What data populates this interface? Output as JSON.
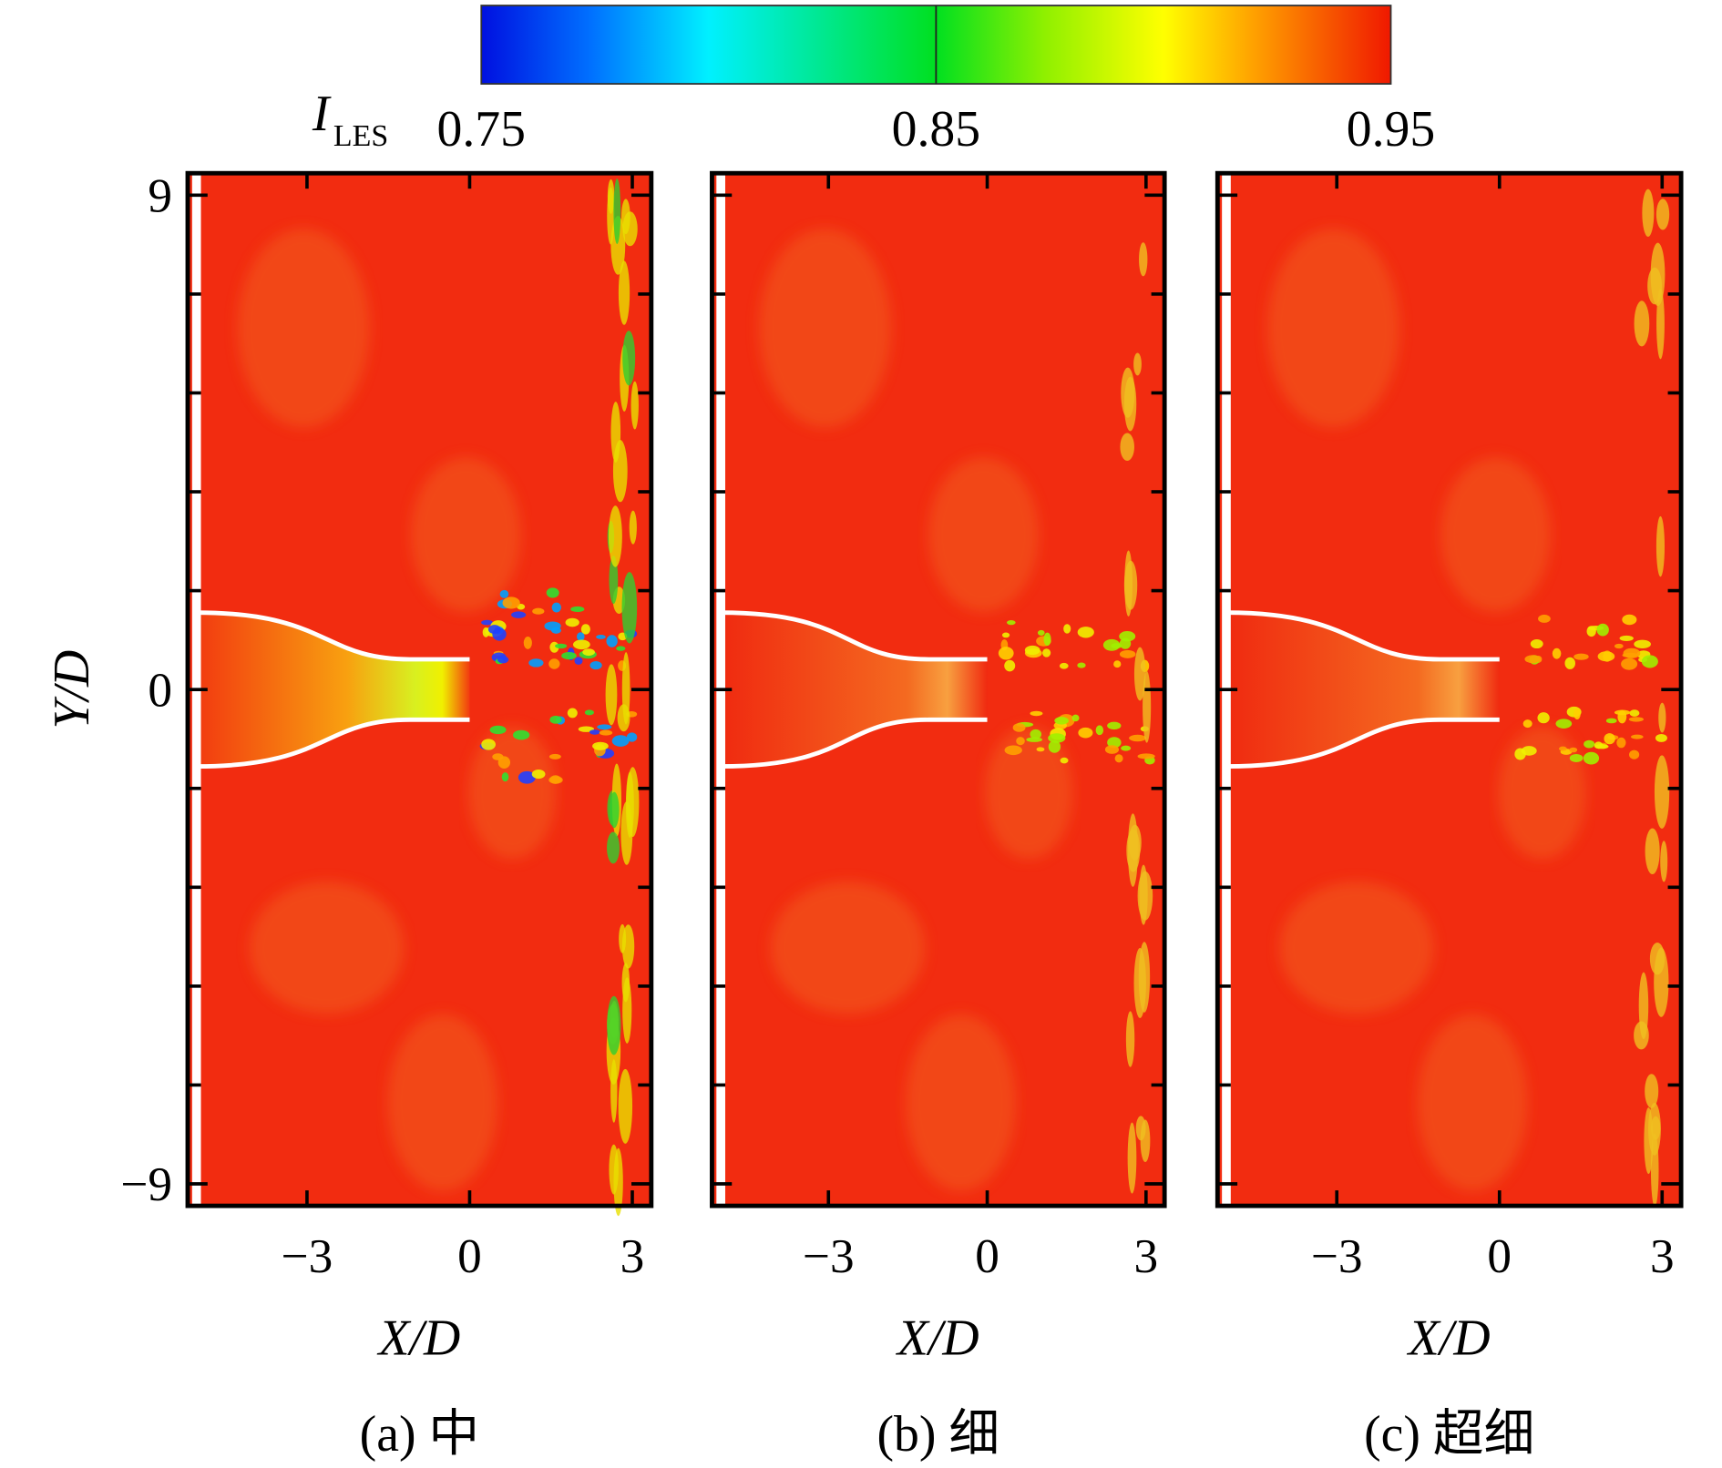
{
  "colorbar": {
    "label": "I",
    "label_sub": "LES",
    "lim": [
      0.75,
      0.95
    ],
    "ticks": [
      0.75,
      0.85,
      0.95
    ]
  },
  "chart_data": [
    {
      "type": "contour",
      "caption": "(a) 中",
      "xlabel": "X/D",
      "ylabel": "Y/D",
      "xlim": [
        -5.2,
        3.35
      ],
      "ylim": [
        -9.4,
        9.4
      ],
      "xticks": [
        {
          "value": -3,
          "label": "−3"
        },
        0,
        3
      ],
      "yticks": [
        9,
        0,
        {
          "value": -9,
          "label": "−9"
        }
      ],
      "yminor": [
        7.2,
        5.4,
        3.6,
        1.8,
        -1.8,
        -3.6,
        -5.4,
        -7.2
      ]
    },
    {
      "type": "contour",
      "caption": "(b) 细",
      "xlabel": "X/D",
      "xlim": [
        -5.2,
        3.35
      ],
      "ylim": [
        -9.4,
        9.4
      ],
      "xticks": [
        {
          "value": -3,
          "label": "−3"
        },
        0,
        3
      ],
      "yticks": [
        9,
        0,
        -9
      ],
      "yminor": [
        7.2,
        5.4,
        3.6,
        1.8,
        -1.8,
        -3.6,
        -5.4,
        -7.2
      ]
    },
    {
      "type": "contour",
      "caption": "(c) 超细",
      "xlabel": "X/D",
      "xlim": [
        -5.2,
        3.35
      ],
      "ylim": [
        -9.4,
        9.4
      ],
      "xticks": [
        {
          "value": -3,
          "label": "−3"
        },
        0,
        3
      ],
      "yticks": [
        9,
        0,
        -9
      ],
      "yminor": [
        7.2,
        5.4,
        3.6,
        1.8,
        -1.8,
        -3.6,
        -5.4,
        -7.2
      ]
    }
  ]
}
